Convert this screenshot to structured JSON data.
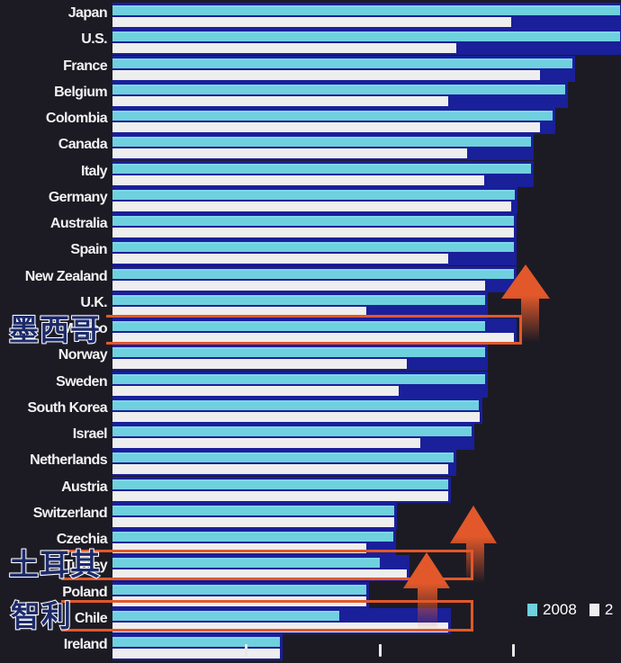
{
  "chart_data": {
    "type": "bar",
    "orientation": "horizontal",
    "title": "",
    "xlabel": "",
    "ylabel": "",
    "grid": false,
    "legend_position": "bottom-right",
    "x_ticks_visible_units": [
      1,
      2,
      3
    ],
    "x_tick_labels": [],
    "units_note": "Values in axis-tick units (tick labels not visible); baseline = 0, ticks at 1, 2, 3",
    "categories": [
      "Japan",
      "U.S.",
      "France",
      "Belgium",
      "Colombia",
      "Canada",
      "Italy",
      "Germany",
      "Australia",
      "Spain",
      "New Zealand",
      "U.K.",
      "Mexico",
      "Norway",
      "Sweden",
      "South Korea",
      "Israel",
      "Netherlands",
      "Austria",
      "Switzerland",
      "Czechia",
      "Turkey",
      "Poland",
      "Chile",
      "Ireland"
    ],
    "series": [
      {
        "name": "2008",
        "color": "#6fd0de",
        "values": [
          3.8,
          3.8,
          3.44,
          3.39,
          3.29,
          3.13,
          3.13,
          3.01,
          3.0,
          3.0,
          3.0,
          2.79,
          2.79,
          2.79,
          2.79,
          2.74,
          2.69,
          2.55,
          2.51,
          2.11,
          2.1,
          2.0,
          1.9,
          1.7,
          1.25
        ]
      },
      {
        "name": "2…",
        "color": "#eeeeee",
        "values": [
          2.98,
          2.57,
          3.2,
          2.51,
          3.2,
          2.65,
          2.78,
          2.98,
          3.0,
          2.51,
          2.79,
          1.9,
          3.0,
          2.2,
          2.14,
          2.75,
          2.3,
          2.51,
          2.51,
          2.11,
          1.9,
          2.2,
          1.9,
          2.51,
          1.25
        ]
      }
    ],
    "annotations": [
      {
        "text": "墨西哥",
        "target": "Mexico",
        "type": "highlight-box-with-up-arrow"
      },
      {
        "text": "土耳其",
        "target": "Turkey",
        "type": "highlight-box-with-up-arrow"
      },
      {
        "text": "智利",
        "target": "Chile",
        "type": "highlight-box-with-up-arrow"
      }
    ]
  },
  "legend": {
    "items": [
      {
        "label": "2008",
        "color": "#6fd0de"
      },
      {
        "label": "2",
        "color": "#eeeeee"
      }
    ]
  },
  "annotation_labels": {
    "mexico": "墨西哥",
    "turkey": "土耳其",
    "chile": "智利"
  },
  "colors": {
    "background": "#1c1b24",
    "row_band": "#1a1f9a",
    "highlight": "#e2582a"
  }
}
